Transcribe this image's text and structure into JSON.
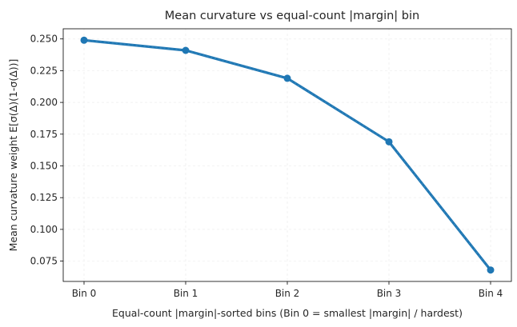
{
  "chart_data": {
    "type": "line",
    "title": "Mean curvature vs equal-count |margin| bin",
    "xlabel": "Equal-count |margin|-sorted bins (Bin 0 = smallest |margin| / hardest)",
    "ylabel": "Mean curvature weight  E[σ(Δ)(1-σ(Δ))]",
    "categories": [
      "Bin 0",
      "Bin 1",
      "Bin 2",
      "Bin 3",
      "Bin 4"
    ],
    "series": [
      {
        "values": [
          0.249,
          0.241,
          0.219,
          0.169,
          0.068
        ]
      }
    ],
    "yticks": [
      0.075,
      0.1,
      0.125,
      0.15,
      0.175,
      0.2,
      0.225,
      0.25
    ],
    "ytick_labels": [
      "0.075",
      "0.100",
      "0.125",
      "0.150",
      "0.175",
      "0.200",
      "0.225",
      "0.250"
    ],
    "ylim": [
      0.059,
      0.258
    ],
    "grid": true,
    "line_color": "#1f77b4"
  }
}
